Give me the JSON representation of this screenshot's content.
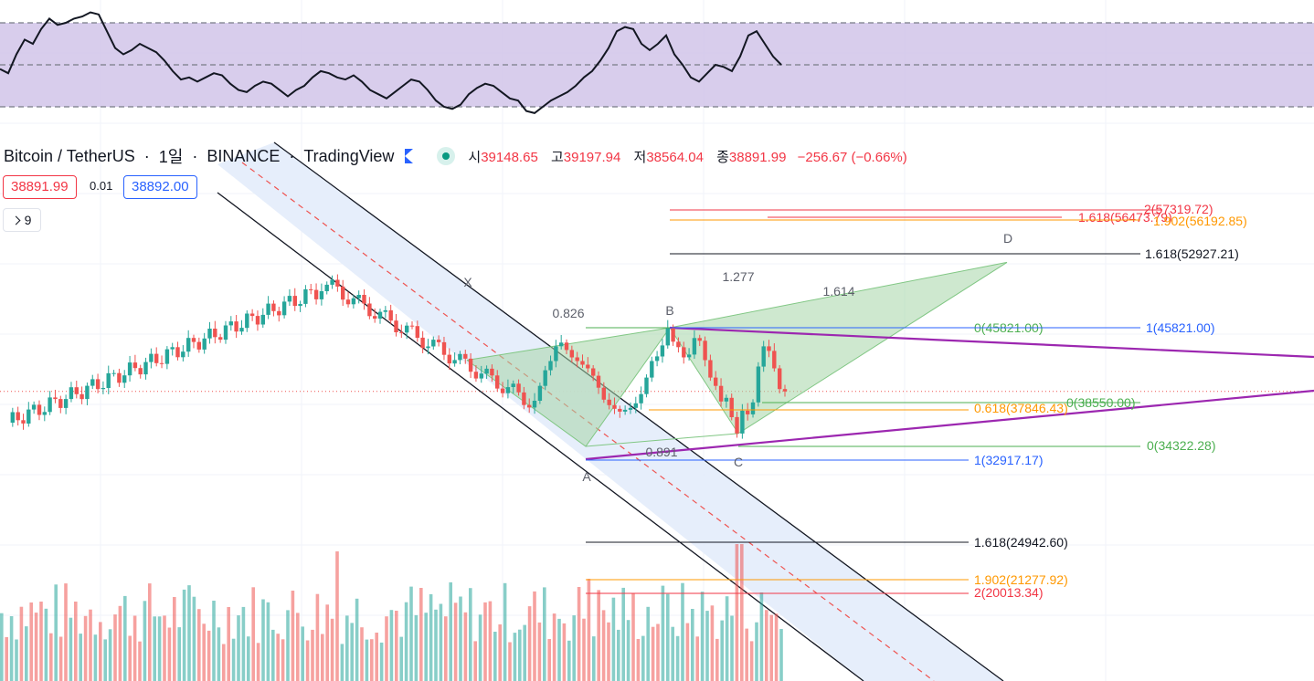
{
  "header": {
    "symbol": "Bitcoin / TetherUS",
    "interval": "1일",
    "exchange": "BINANCE",
    "source": "TradingView",
    "dot": "·",
    "open_label": "시",
    "open": "39148.65",
    "high_label": "고",
    "high": "39197.94",
    "low_label": "저",
    "low": "38564.04",
    "close_label": "종",
    "close": "38891.99",
    "change": "−256.67 (−0.66%)"
  },
  "price_boxes": {
    "sell": "38891.99",
    "spread": "0.01",
    "buy": "38892.00"
  },
  "indicator_toggle": {
    "count": "9"
  },
  "colors": {
    "up": "#26a69a",
    "down": "#ef5350",
    "rsi_band": "#d1c4e9",
    "harmonic_fill": "#a5d6a7",
    "channel_fill": "#e3ecfb",
    "trendline": "#9c27b0"
  },
  "chart_data": {
    "type": "candlestick",
    "title": "Bitcoin / TetherUS · 1일 · BINANCE",
    "last_price": 38891.99,
    "price_range_visible": [
      18000,
      60000
    ],
    "ohlc_recent_approx": [
      39500,
      41200,
      42200,
      43800,
      44200,
      43400,
      42600,
      42200,
      41800,
      41400,
      40600,
      39300,
      38000,
      37400,
      37000,
      36700,
      36900,
      37100,
      37600,
      38600,
      40400,
      42200,
      42700,
      43900,
      45821,
      44300,
      43700,
      42600,
      42900,
      44700,
      44400,
      42300,
      40400,
      39500,
      37800,
      38200,
      36100,
      34322,
      36800,
      36400,
      37700,
      41600,
      43800,
      43300,
      41400,
      39149,
      38892
    ],
    "harmonic_pattern": {
      "points": [
        {
          "label": "X",
          "price": 42300
        },
        {
          "label": "A",
          "price": 32917.17
        },
        {
          "label": "B",
          "price": 45821.0
        },
        {
          "label": "C",
          "price": 34322.28
        },
        {
          "label": "D",
          "price": 52927.21
        }
      ],
      "ratios": [
        {
          "label": "0.826"
        },
        {
          "label": "0.891"
        },
        {
          "label": "1.277"
        },
        {
          "label": "1.614"
        }
      ]
    },
    "fib_levels": [
      {
        "label": "2(57319.72)",
        "price": 57319.72,
        "color": "#f23645"
      },
      {
        "label": "1.618(56473.79)",
        "price": 56473.79,
        "color": "#f23645"
      },
      {
        "label": "1.902(56192.85)",
        "price": 56192.85,
        "color": "#ff9800"
      },
      {
        "label": "1.618(52927.21)",
        "price": 52927.21,
        "color": "#131722"
      },
      {
        "label": "0(45821.00)",
        "price": 45821.0,
        "color": "#4caf50"
      },
      {
        "label": "1(45821.00)",
        "price": 45821.0,
        "color": "#2962ff"
      },
      {
        "label": "0(38550.00)",
        "price": 38550.0,
        "color": "#4caf50"
      },
      {
        "label": "0.618(37846.43)",
        "price": 37846.43,
        "color": "#ff9800"
      },
      {
        "label": "0(34322.28)",
        "price": 34322.28,
        "color": "#4caf50"
      },
      {
        "label": "1(32917.17)",
        "price": 32917.17,
        "color": "#2962ff"
      },
      {
        "label": "1.618(24942.60)",
        "price": 24942.6,
        "color": "#131722"
      },
      {
        "label": "1.902(21277.92)",
        "price": 21277.92,
        "color": "#ff9800"
      },
      {
        "label": "2(20013.34)",
        "price": 20013.34,
        "color": "#f23645"
      }
    ],
    "rsi": {
      "upper_band": 70,
      "mid": 50,
      "lower_band": 30,
      "values": [
        48,
        46,
        55,
        62,
        60,
        67,
        72,
        69,
        70,
        72,
        73,
        75,
        74,
        66,
        58,
        55,
        57,
        60,
        58,
        56,
        52,
        47,
        43,
        44,
        42,
        44,
        46,
        45,
        41,
        38,
        37,
        40,
        42,
        41,
        38,
        35,
        38,
        40,
        44,
        47,
        46,
        44,
        43,
        45,
        42,
        38,
        36,
        34,
        37,
        40,
        43,
        42,
        38,
        33,
        30,
        29,
        31,
        36,
        39,
        41,
        40,
        37,
        34,
        33,
        28,
        27,
        30,
        33,
        35,
        37,
        40,
        44,
        47,
        52,
        58,
        66,
        68,
        67,
        60,
        57,
        60,
        64,
        55,
        50,
        44,
        42,
        46,
        50,
        49,
        47,
        54,
        64,
        66,
        60,
        54,
        50
      ]
    }
  }
}
